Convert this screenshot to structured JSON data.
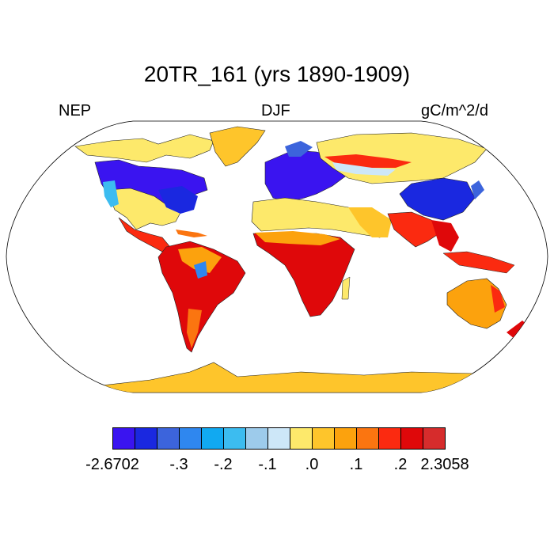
{
  "title": "20TR_161 (yrs 1890-1909)",
  "left_label": "NEP",
  "center_label": "DJF",
  "right_label": "gC/m^2/d",
  "colorbar": {
    "colors": [
      "#3a14f0",
      "#1a28e0",
      "#3c64dc",
      "#2f87ef",
      "#11a9f1",
      "#3cbcf0",
      "#9dcbeb",
      "#cde7f8",
      "#fde96b",
      "#fec52b",
      "#fca20d",
      "#fb7510",
      "#fb2a10",
      "#df080a",
      "#d62c2c"
    ],
    "tick_labels": [
      "-2.6702",
      "-.3",
      "-.2",
      "-.1",
      ".0",
      ".1",
      ".2",
      "2.3058"
    ]
  },
  "map_legend": {
    "variable": "NEP",
    "season": "DJF",
    "units": "gC/m^2/d",
    "min": -2.6702,
    "max": 2.3058
  }
}
